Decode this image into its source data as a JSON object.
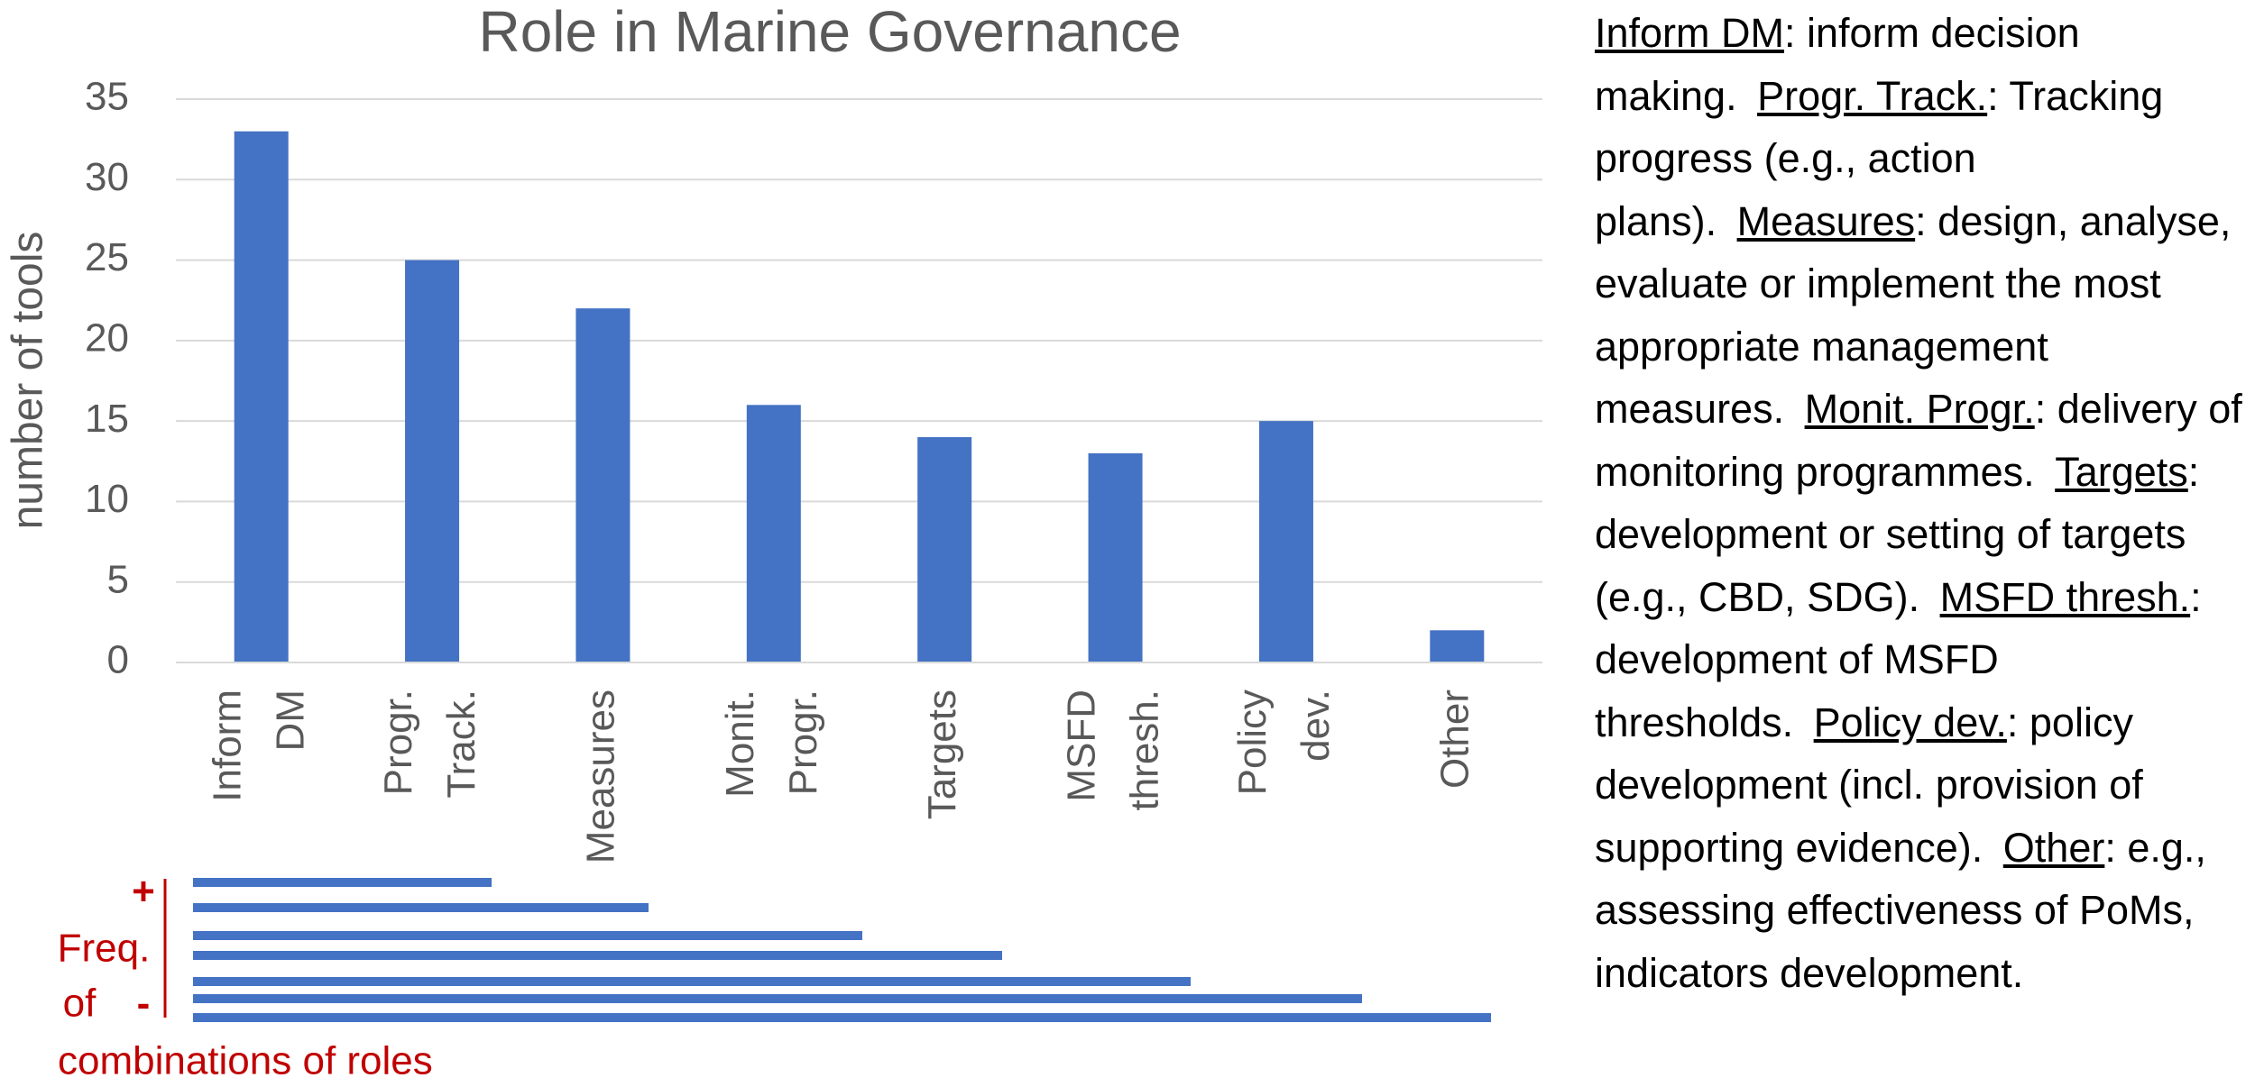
{
  "chart_data": {
    "type": "bar",
    "title": "Role in Marine Governance",
    "y_label": "number of tools",
    "categories": [
      "Inform DM",
      "Progr. Track.",
      "Measures",
      "Monit. Progr.",
      "Targets",
      "MSFD thresh.",
      "Policy dev.",
      "Other"
    ],
    "values": [
      33,
      25,
      22,
      16,
      14,
      13,
      15,
      2
    ],
    "color": "#4472c4",
    "ylim": [
      0,
      35
    ],
    "yticks": [
      0,
      5,
      10,
      15,
      20,
      25,
      30,
      35
    ],
    "grid": true
  },
  "freq_panel": {
    "plus": "+",
    "label_1": "Freq.",
    "label_2": "of",
    "minus": "-",
    "label_3": "combinations of roles"
  },
  "notes": [
    {
      "term": "Inform DM",
      "text": ": inform decision making."
    },
    {
      "term": "Progr. Track.",
      "text": ": Tracking progress (e.g., action plans)."
    },
    {
      "term": "Measures",
      "text": ": design, analyse, evaluate or implement the most appropriate management measures."
    },
    {
      "term": "Monit. Progr.",
      "text": ": delivery of monitoring programmes."
    },
    {
      "term": "Targets",
      "text": ": development or setting of targets (e.g., CBD, SDG)."
    },
    {
      "term": "MSFD thresh.",
      "text": ": development of MSFD thresholds."
    },
    {
      "term": "Policy dev.",
      "text": ": policy development (incl. provision of supporting evidence)."
    },
    {
      "term": "Other",
      "text": ": e.g., assessing effectiveness of PoMs, indicators development."
    }
  ]
}
